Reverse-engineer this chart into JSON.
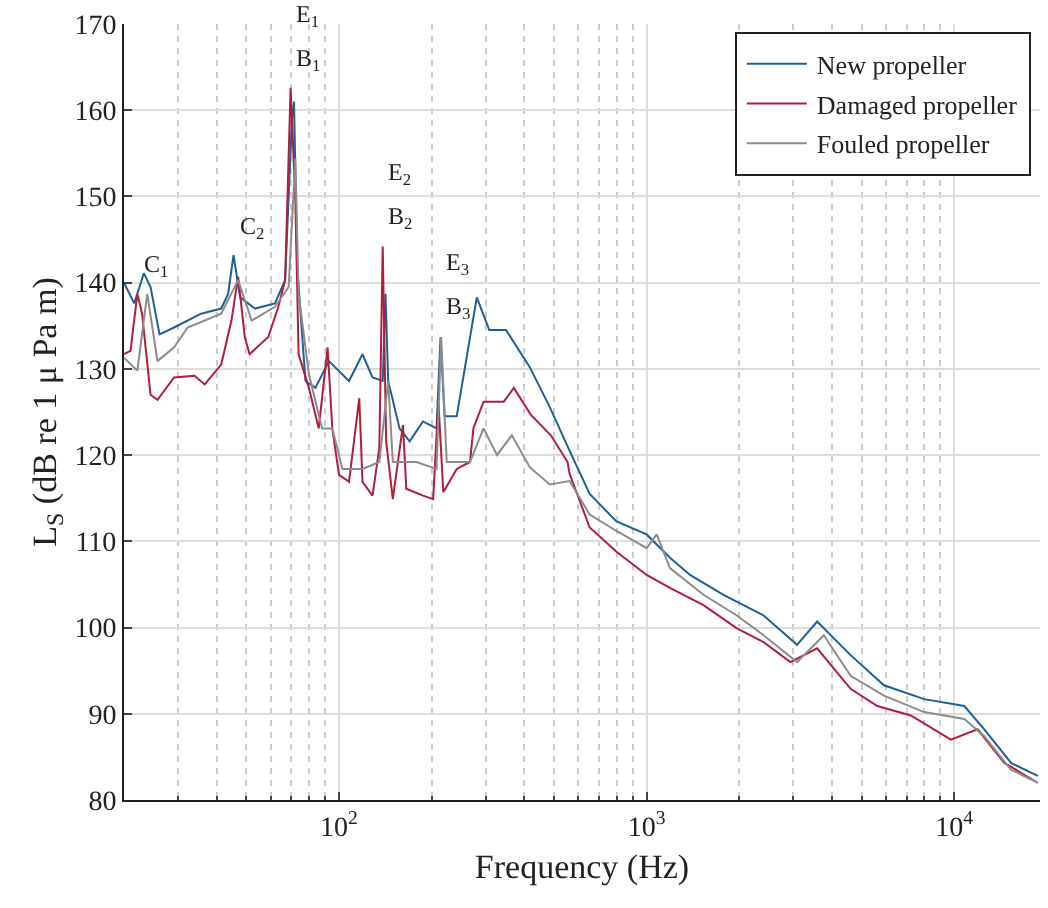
{
  "chart_data": {
    "type": "line",
    "xlabel": "Frequency (Hz)",
    "ylabel": "L$_{S}$ (dB re 1 μ Pa m)",
    "log": "x",
    "grid": true,
    "legend": "top right",
    "xlim": [
      20,
      19000
    ],
    "ylim": [
      80,
      170
    ],
    "xticks": [
      {
        "value": 100,
        "label": "10$^{2}$"
      },
      {
        "value": 1000,
        "label": "10$^{3}$"
      },
      {
        "value": 10000,
        "label": "10$^{4}$"
      }
    ],
    "yticks": [
      80,
      90,
      100,
      110,
      120,
      130,
      140,
      150,
      160,
      170
    ],
    "annotations": [
      {
        "text": "C$_{1}$",
        "x": 22.1,
        "y": 138.7
      },
      {
        "text": "C$_{2}$",
        "x": 45.4,
        "y": 143.2
      },
      {
        "text": "E$_{1}$",
        "x": 69.6,
        "y": 162.6
      },
      {
        "text": "B$_{1}$",
        "x": 69.6,
        "y": 162.6
      },
      {
        "text": "E$_{2}$",
        "x": 138.7,
        "y": 144.2
      },
      {
        "text": "B$_{2}$",
        "x": 138.7,
        "y": 144.2
      },
      {
        "text": "E$_{3}$",
        "x": 213.8,
        "y": 133.7
      },
      {
        "text": "B$_{3}$",
        "x": 213.8,
        "y": 133.7
      }
    ],
    "series": [
      {
        "name": "New propeller",
        "color": "#1f5f96",
        "x": [
          20,
          21.6,
          23.2,
          24.4,
          26.1,
          29.1,
          35.6,
          41.4,
          43.6,
          45.4,
          47.7,
          53.3,
          61.9,
          66.8,
          70.3,
          71.4,
          73.1,
          77.8,
          83.8,
          92.7,
          107.8,
          119.2,
          128.5,
          138.7,
          141.6,
          144.5,
          157.3,
          169.7,
          187.5,
          207.5,
          213.8,
          220.3,
          241.3,
          280.5,
          308,
          349,
          417,
          484,
          562,
          653,
          798,
          1000,
          1191,
          1384,
          1778,
          2400,
          3083,
          3583,
          4603,
          5910,
          7980,
          10780,
          12520,
          15300,
          18690
        ],
        "values": [
          140,
          137.6,
          141.1,
          139.5,
          134,
          134.8,
          136.4,
          137,
          138.7,
          143.2,
          138.3,
          137,
          137.6,
          140.3,
          159,
          161,
          141.9,
          128.6,
          127.8,
          130.9,
          128.6,
          131.7,
          129,
          128.6,
          138.7,
          128.6,
          123.1,
          121.6,
          123.9,
          123.1,
          133.7,
          124.5,
          124.5,
          138.3,
          134.5,
          134.5,
          130.2,
          125.6,
          120.5,
          115.5,
          112.3,
          110.8,
          108.1,
          106.1,
          103.8,
          101.4,
          98,
          100.7,
          96.8,
          93.3,
          91.7,
          90.9,
          88.2,
          84.3,
          82.8
        ]
      },
      {
        "name": "Damaged propeller",
        "color": "#b01e3c",
        "x": [
          20,
          21,
          22.1,
          22.9,
          24.4,
          25.7,
          29.1,
          33.9,
          36.6,
          41.4,
          44.7,
          47,
          49.4,
          51.2,
          58.9,
          63.5,
          66.8,
          69.6,
          72.1,
          73.9,
          79.8,
          85.9,
          91.8,
          95.1,
          100,
          107.8,
          116.4,
          119.2,
          128.5,
          135.2,
          138.7,
          142.3,
          149.6,
          161.4,
          165.5,
          187.5,
          202.3,
          210.4,
          218.3,
          241.3,
          266.6,
          273.4,
          295,
          343.4,
          370,
          419.9,
          488.1,
          553.4,
          562,
          653,
          798,
          1000,
          1191,
          1530,
          1965,
          2400,
          2933,
          3583,
          4603,
          5623,
          7222,
          9750,
          11910,
          14550,
          18690
        ],
        "values": [
          131.7,
          132.1,
          138.7,
          136.4,
          127,
          126.4,
          129,
          129.2,
          128.2,
          130.5,
          135.6,
          140.7,
          133.7,
          131.7,
          133.7,
          137.2,
          140.3,
          162.6,
          149.7,
          131.7,
          127.8,
          123.1,
          132.5,
          123.1,
          117.7,
          116.9,
          126.6,
          116.9,
          115.3,
          120.8,
          144.2,
          121.6,
          114.9,
          123.5,
          116.1,
          115.3,
          114.9,
          126.2,
          115.7,
          118.4,
          119.2,
          123.1,
          126.2,
          126.2,
          127.8,
          124.7,
          122.3,
          119.2,
          117.8,
          111.6,
          108.8,
          106.1,
          104.6,
          102.6,
          99.9,
          98.3,
          96,
          97.6,
          92.9,
          90.9,
          89.8,
          87,
          88.2,
          84.3,
          82
        ]
      },
      {
        "name": "Fouled propeller",
        "color": "#8c8c8c",
        "x": [
          20,
          22.1,
          23.8,
          25.7,
          29.1,
          32.2,
          41.4,
          47,
          52,
          61.9,
          68.6,
          72.1,
          73.9,
          79.8,
          88.1,
          95.1,
          102.6,
          119.2,
          135.2,
          144.5,
          149.6,
          178.4,
          207.5,
          214.8,
          223.9,
          266.6,
          295,
          326.4,
          364.6,
          417,
          484,
          562,
          653,
          798,
          1000,
          1078,
          1191,
          1530,
          1965,
          2400,
          3083,
          3767,
          4603,
          5910,
          7980,
          10780,
          12520,
          15300,
          18690
        ],
        "values": [
          131.3,
          129.8,
          138.7,
          130.9,
          132.5,
          134.8,
          136.4,
          140.3,
          135.6,
          137.2,
          139.5,
          154.4,
          138.7,
          129.4,
          123.1,
          123.1,
          118.4,
          118.4,
          119.2,
          128.6,
          119.2,
          119.2,
          118.4,
          133.7,
          119.2,
          119.2,
          123.1,
          120,
          122.3,
          118.6,
          116.6,
          117,
          113.1,
          111.2,
          109.2,
          110.8,
          106.9,
          103.8,
          101.4,
          99.1,
          96,
          99.1,
          94.4,
          92.1,
          90.2,
          89.4,
          87.4,
          83.5,
          82
        ]
      }
    ]
  }
}
